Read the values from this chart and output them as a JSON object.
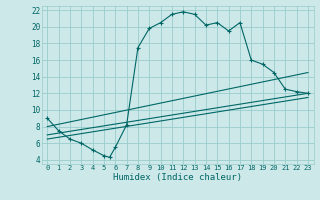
{
  "title": "",
  "xlabel": "Humidex (Indice chaleur)",
  "bg_color": "#cce8e8",
  "grid_color": "#99cccc",
  "line_color": "#006666",
  "xlim": [
    -0.5,
    23.5
  ],
  "ylim": [
    3.5,
    22.5
  ],
  "xticks": [
    0,
    1,
    2,
    3,
    4,
    5,
    6,
    7,
    8,
    9,
    10,
    11,
    12,
    13,
    14,
    15,
    16,
    17,
    18,
    19,
    20,
    21,
    22,
    23
  ],
  "yticks": [
    4,
    6,
    8,
    10,
    12,
    14,
    16,
    18,
    20,
    22
  ],
  "curve1_x": [
    0,
    1,
    2,
    3,
    4,
    5,
    5.5,
    6,
    7,
    8,
    9,
    10,
    11,
    12,
    13,
    14,
    15,
    16,
    17,
    18,
    19,
    20,
    21,
    22,
    23
  ],
  "curve1_y": [
    9,
    7.5,
    6.5,
    6,
    5.2,
    4.5,
    4.3,
    5.5,
    8.2,
    17.5,
    19.8,
    20.5,
    21.5,
    21.8,
    21.5,
    20.2,
    20.5,
    19.5,
    20.5,
    16,
    15.5,
    14.5,
    12.5,
    12.2,
    12
  ],
  "line2_x": [
    0,
    23
  ],
  "line2_y": [
    8,
    14.5
  ],
  "line3_x": [
    0,
    23
  ],
  "line3_y": [
    7,
    12
  ],
  "line4_x": [
    0,
    23
  ],
  "line4_y": [
    6.5,
    11.5
  ]
}
